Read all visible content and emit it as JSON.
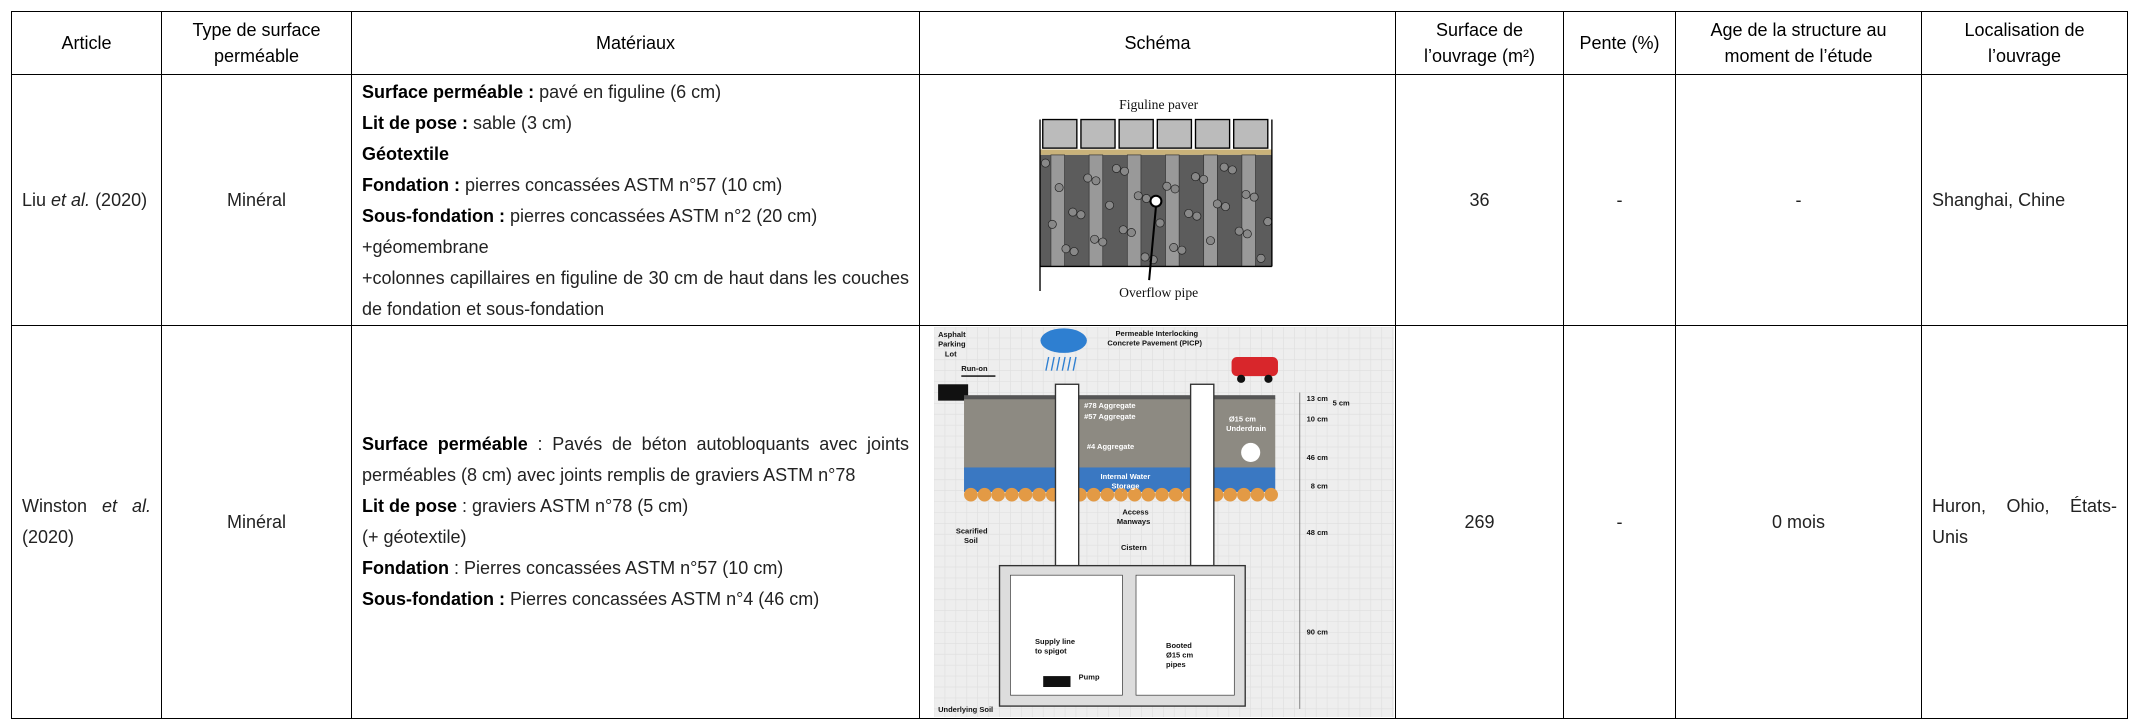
{
  "table": {
    "header": [
      "Article",
      "Type de surface perméable",
      "Matériaux",
      "Schéma",
      "Surface de l’ouvrage (m²)",
      "Pente (%)",
      "Age de la structure au moment de l’étude",
      "Localisation de l’ouvrage"
    ],
    "rows": [
      {
        "article": [
          {
            "text": "Liu "
          },
          {
            "text": "et al.",
            "italic": true
          },
          {
            "text": " (2020)"
          }
        ],
        "type": "Minéral",
        "materials": [
          [
            {
              "text": "Surface perméable :",
              "bold": true
            },
            {
              "text": " pavé en figuline (6 cm)"
            }
          ],
          [
            {
              "text": "Lit de pose :",
              "bold": true
            },
            {
              "text": " sable (3 cm)"
            }
          ],
          [
            {
              "text": "Géotextile",
              "bold": true
            }
          ],
          [
            {
              "text": "Fondation :",
              "bold": true
            },
            {
              "text": " pierres concassées ASTM n°57 (10 cm)"
            }
          ],
          [
            {
              "text": "Sous-fondation :",
              "bold": true
            },
            {
              "text": " pierres concassées ASTM n°2 (20 cm)"
            }
          ],
          [
            {
              "text": "+géomembrane"
            }
          ],
          [
            {
              "text": "+colonnes capillaires en figuline de 30 cm de haut dans les couches de fondation et sous-fondation"
            }
          ]
        ],
        "schema": [
          "Figuline paver",
          "Overflow pipe"
        ],
        "surface": 36,
        "pente": "-",
        "age": "-",
        "localisation": "Shanghai, Chine"
      },
      {
        "article": [
          {
            "text": "Winston "
          },
          {
            "text": "et al.",
            "italic": true
          },
          {
            "text": " (2020)"
          }
        ],
        "type": "Minéral",
        "materials": [
          [
            {
              "text": "Surface perméable",
              "bold": true
            },
            {
              "text": " : Pavés de béton autobloquants avec joints perméables (8 cm) avec joints remplis de graviers ASTM n°78"
            }
          ],
          [
            {
              "text": "Lit de pose",
              "bold": true
            },
            {
              "text": " : graviers ASTM n°78 (5 cm)"
            }
          ],
          [
            {
              "text": "(+ géotextile)"
            }
          ],
          [
            {
              "text": "Fondation",
              "bold": true
            },
            {
              "text": " : Pierres concassées ASTM n°57 (10 cm)"
            }
          ],
          [
            {
              "text": "Sous-fondation :",
              "bold": true
            },
            {
              "text": " Pierres concassées ASTM n°4 (46 cm)"
            }
          ]
        ],
        "schema": [
          "Asphalt",
          "Parking",
          "Lot",
          "Run-on",
          "Permeable Interlocking",
          "Concrete Pavement (PICP)",
          "#78 Aggregate",
          "#57 Aggregate",
          "#4 Aggregate",
          "Internal Water",
          "Storage",
          "Ø15 cm",
          "Underdrain",
          "Scarified",
          "Soil",
          "Access",
          "Manways",
          "Cistern",
          "13 cm",
          "5 cm",
          "10 cm",
          "46 cm",
          "8 cm",
          "48 cm",
          "90 cm",
          "Supply line",
          "to spigot",
          "Pump",
          "Booted",
          "Ø15 cm",
          "pipes",
          "Underlying Soil"
        ],
        "surface": 269,
        "pente": "-",
        "age": "0 mois",
        "localisation": "Huron, Ohio, États-Unis"
      }
    ]
  }
}
